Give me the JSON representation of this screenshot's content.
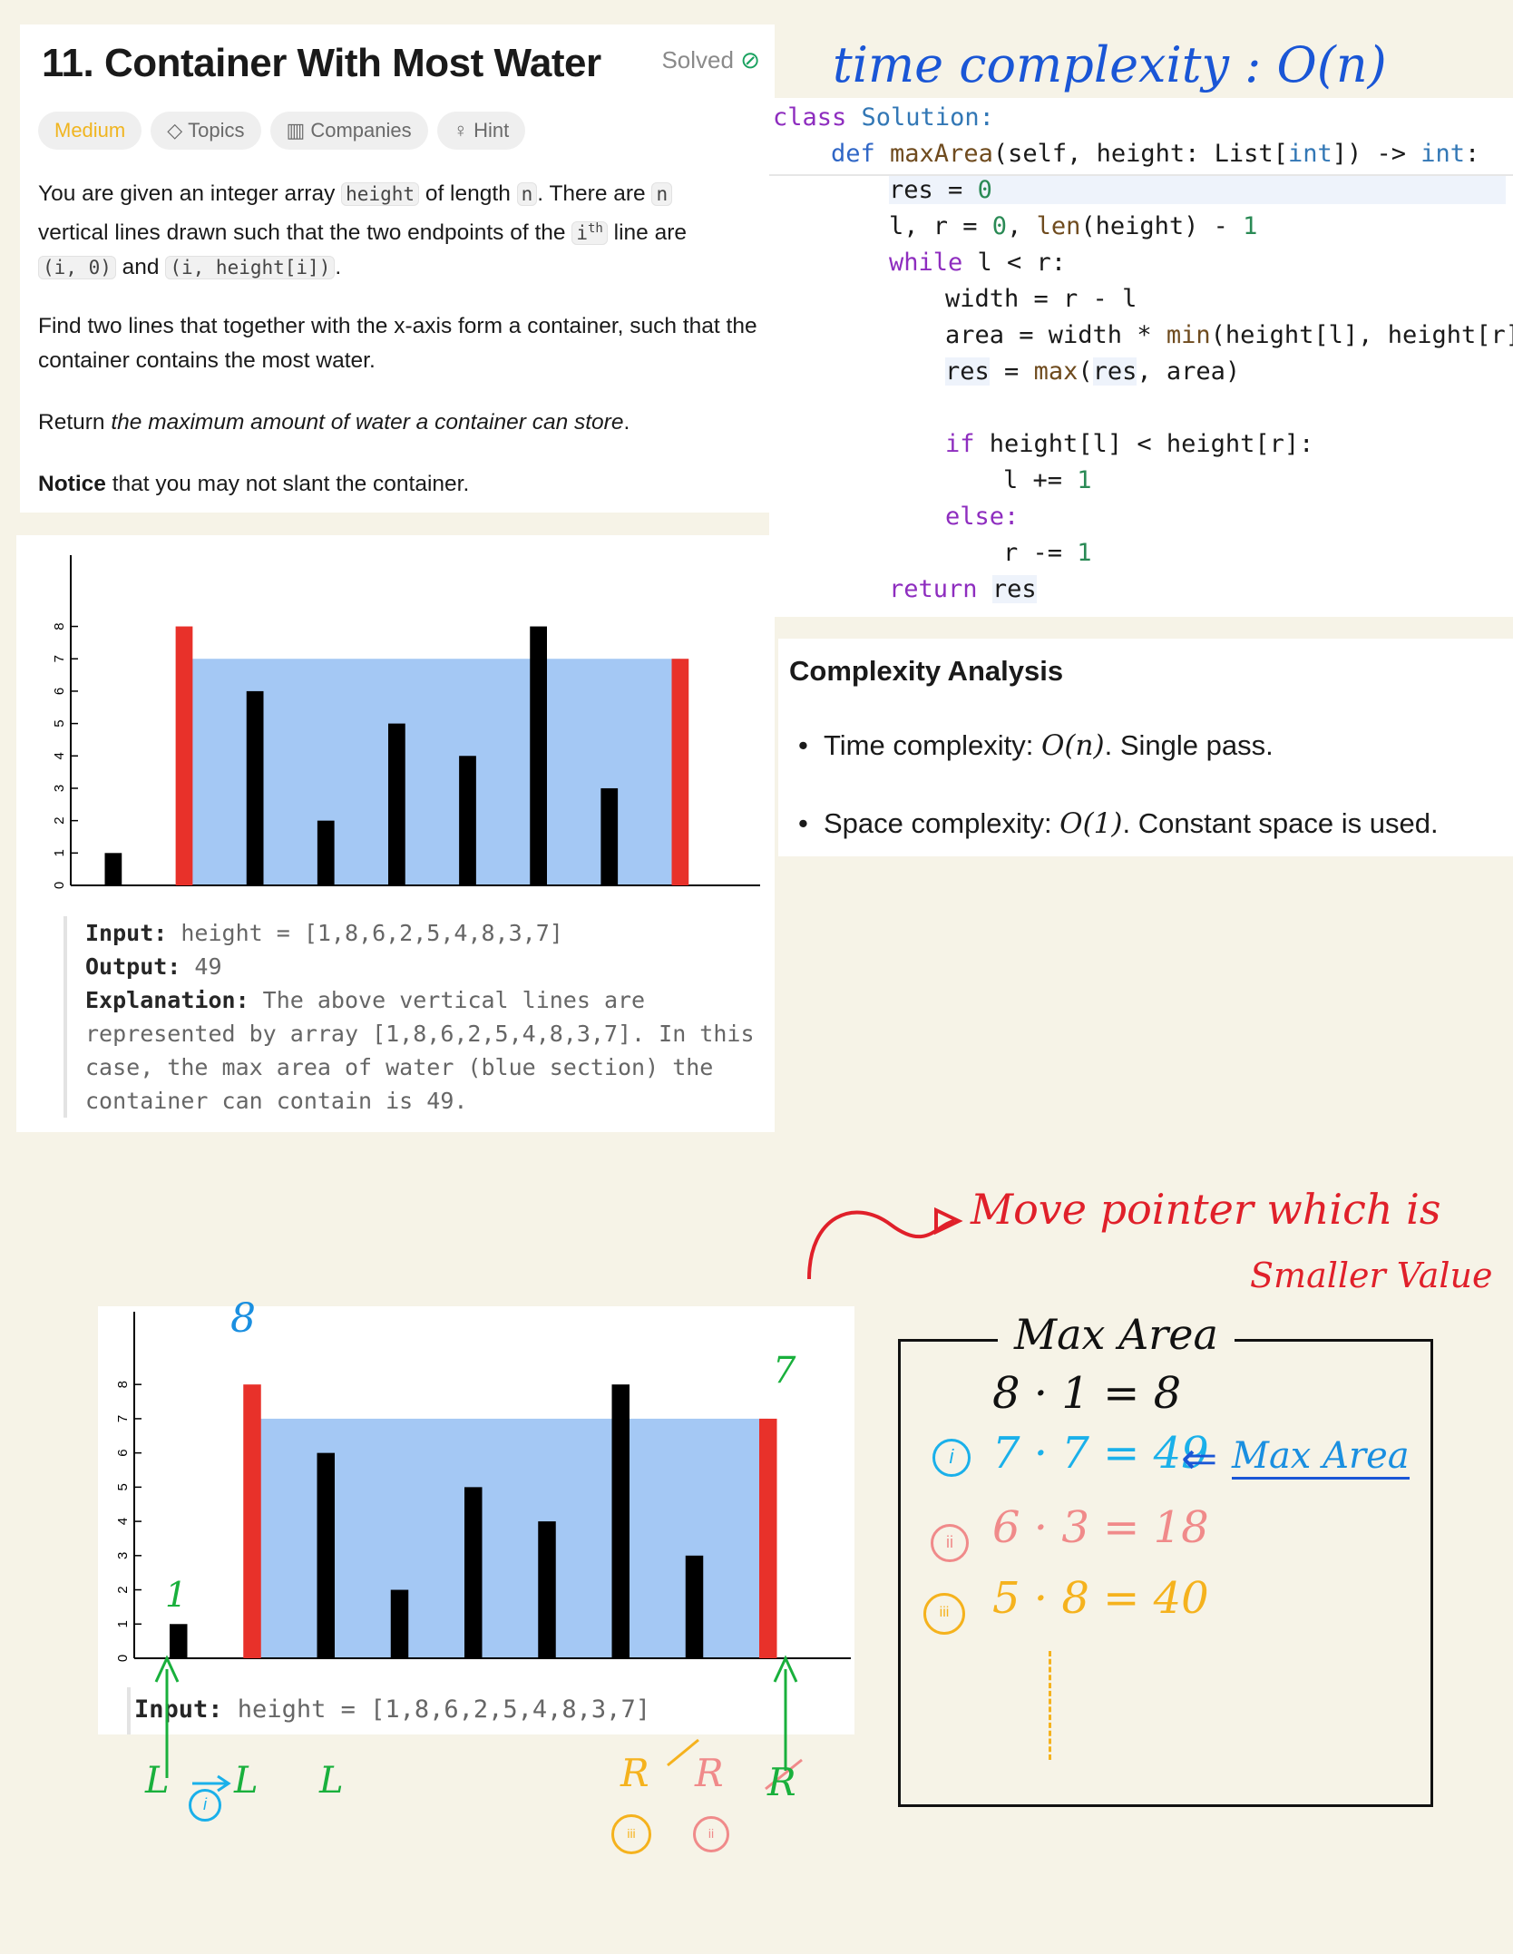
{
  "problem": {
    "title": "11. Container With Most Water",
    "status": "Solved",
    "tags": {
      "difficulty": "Medium",
      "topics": "Topics",
      "companies": "Companies",
      "hint": "Hint"
    },
    "para1": {
      "t1": "You are given an integer array ",
      "c1": "height",
      "t2": " of length ",
      "c2": "n",
      "t3": ". There are ",
      "c3": "n",
      "t4": "vertical lines drawn such that the two endpoints of the ",
      "c4": "i",
      "sup": "th",
      "t5": " line are",
      "c5": "(i, 0)",
      "t6": " and ",
      "c6": "(i, height[i])",
      "t7": "."
    },
    "para2": "Find two lines that together with the x-axis form a container, such that the container contains the most water.",
    "para3": {
      "t1": "Return ",
      "em": "the maximum amount of water a container can store",
      "t2": "."
    },
    "para4": {
      "bold": "Notice",
      "rest": " that you may not slant the container."
    },
    "example": {
      "input_label": "Input:",
      "input_value": " height = [1,8,6,2,5,4,8,3,7]",
      "output_label": "Output:",
      "output_value": " 49",
      "expl_label": "Explanation:",
      "expl_value": " The above vertical lines are represented by array [1,8,6,2,5,4,8,3,7]. In this case, the max area of water (blue section) the container can contain is 49."
    }
  },
  "chart_data": [
    {
      "type": "bar",
      "values": [
        1,
        8,
        6,
        2,
        5,
        4,
        8,
        3,
        7
      ],
      "highlight_indices": [
        1,
        8
      ],
      "water_level": 7,
      "ylim": [
        0,
        8.8
      ],
      "yticks": [
        "0",
        "1",
        "2",
        "3",
        "4",
        "5",
        "6",
        "7",
        "8"
      ],
      "colors": {
        "bar": "#000000",
        "highlight": "#e8312a",
        "water": "#a4c8f4"
      }
    },
    {
      "type": "bar",
      "values": [
        1,
        8,
        6,
        2,
        5,
        4,
        8,
        3,
        7
      ],
      "highlight_indices": [
        1,
        8
      ],
      "water_level": 7,
      "ylim": [
        0,
        8.8
      ],
      "yticks": [
        "0",
        "1",
        "2",
        "3",
        "4",
        "5",
        "6",
        "7",
        "8"
      ],
      "colors": {
        "bar": "#000000",
        "highlight": "#e8312a",
        "water": "#a4c8f4"
      }
    }
  ],
  "chart2_caption": {
    "label": "Input:",
    "value": " height = [1,8,6,2,5,4,8,3,7]"
  },
  "code": {
    "l1a": "class",
    "l1b": " Solution:",
    "l2a": "def",
    "l2b": " maxArea",
    "l2c": "(self, height: List[",
    "l2d": "int",
    "l2e": "]) -> ",
    "l2f": "int",
    "l2g": ":",
    "l3a": "res",
    "l3b": " = ",
    "l3c": "0",
    "l4a": "l, r = ",
    "l4b": "0",
    "l4c": ", ",
    "l4d": "len",
    "l4e": "(height) - ",
    "l4f": "1",
    "l5a": "while",
    "l5b": " l < r:",
    "l6": "width = r - l",
    "l7a": "area = width * ",
    "l7b": "min",
    "l7c": "(height[l], height[r])",
    "l8a": "res",
    "l8b": " = ",
    "l8c": "max",
    "l8d": "(",
    "l8e": "res",
    "l8f": ", area)",
    "l9a": "if",
    "l9b": " height[l] < height[r]:",
    "l10a": "l += ",
    "l10b": "1",
    "l11": "else:",
    "l12a": "r -= ",
    "l12b": "1",
    "l13a": "return",
    "l13b": " ",
    "l13c": "res"
  },
  "complexity": {
    "heading": "Complexity Analysis",
    "time_label": "Time complexity: ",
    "time_math": "O(n)",
    "time_rest": ". Single pass.",
    "space_label": "Space complexity: ",
    "space_math": "O(1)",
    "space_rest": ". Constant space is used."
  },
  "notes": {
    "time_complexity": "time complexity : O(n)",
    "move_pointer": "Move pointer which is",
    "smaller_value": "Smaller Value",
    "max_area_title": "Max Area",
    "line1": "8 · 1 = 8",
    "line2": "7 · 7 = 49",
    "line3": "6 · 3 = 18",
    "line4": "5 · 8 = 40",
    "max_area_tag": "Max Area",
    "num_i": "i",
    "num_ii": "ii",
    "num_iii": "iii",
    "label_8": "8",
    "label_7": "7",
    "label_1": "1",
    "ptr_L1": "L",
    "ptr_L2": "L",
    "ptr_L3": "L",
    "ptr_R1": "R",
    "ptr_R2": "R",
    "ptr_R3": "R"
  }
}
